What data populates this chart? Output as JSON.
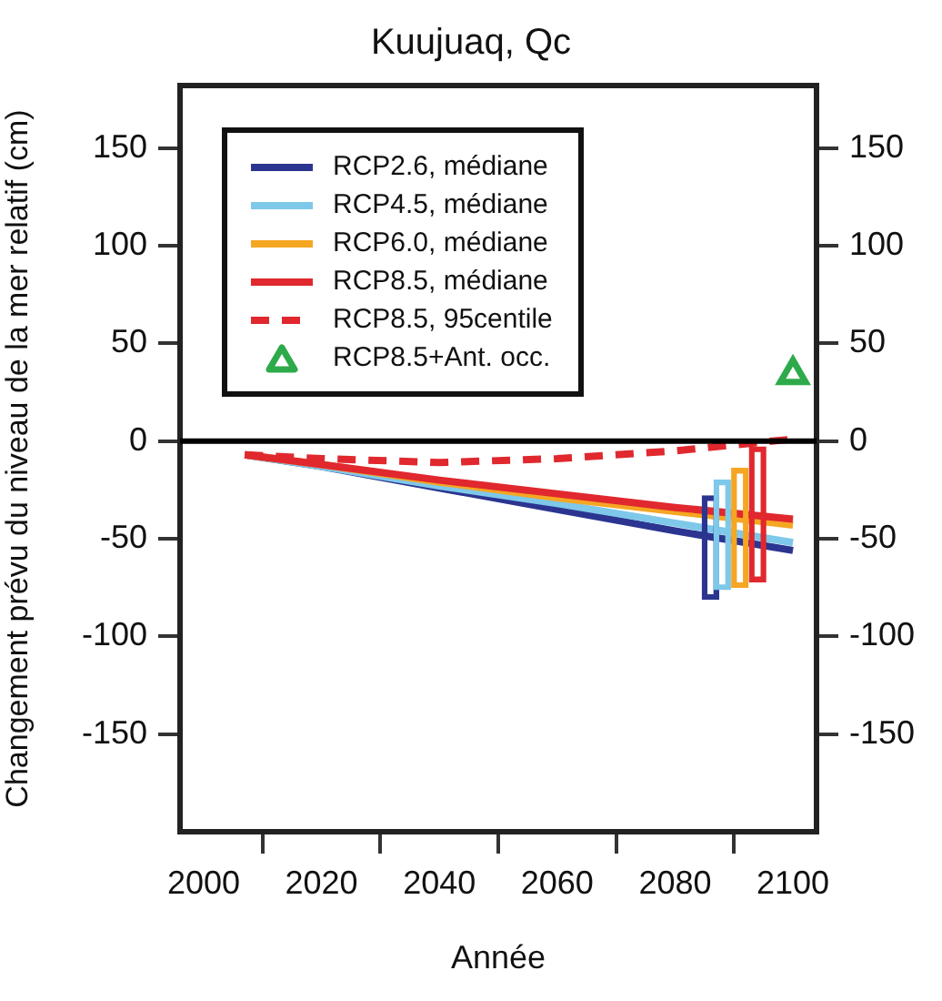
{
  "chart_data": {
    "type": "bar",
    "x": [
      2086,
      2088,
      2091,
      2094
    ],
    "base": [
      -81,
      -76,
      -75,
      -72
    ],
    "values": [
      53,
      56,
      61,
      69
    ],
    "colors": [
      "#2b3590",
      "#7ec8ea",
      "#f5a623",
      "#e0282e"
    ],
    "title": "Kuujuaq, Qc",
    "xlabel": "Année",
    "ylabel": "Changement prévu du niveau de la mer relatif (cm)",
    "xlim": [
      1996,
      2104
    ],
    "xticks": [
      2000,
      2020,
      2040,
      2060,
      2080,
      2100
    ],
    "ylim": [
      -200,
      182
    ],
    "yticks": [
      -150,
      -100,
      -50,
      0,
      50,
      100,
      150
    ],
    "y2lim": [
      -200,
      182
    ],
    "y2ticks": [
      -150,
      -100,
      -50,
      0,
      50,
      100,
      150
    ],
    "legend": "top left",
    "ref_lines": [
      {
        "axis": "y",
        "value": 0,
        "color": "#000000"
      }
    ],
    "series": [
      {
        "name": "RCP2.6, médiane",
        "type": "line",
        "color": "#2b3590",
        "line_style": "solid",
        "marker": "none",
        "x": [
          2007,
          2020,
          2040,
          2060,
          2080,
          2100
        ],
        "values": [
          -7,
          -13,
          -24,
          -35,
          -46,
          -56
        ]
      },
      {
        "name": "RCP4.5, médiane",
        "type": "line",
        "color": "#7ec8ea",
        "line_style": "solid",
        "marker": "none",
        "x": [
          2007,
          2020,
          2040,
          2060,
          2080,
          2100
        ],
        "values": [
          -7,
          -13,
          -23,
          -32,
          -42,
          -52
        ]
      },
      {
        "name": "RCP6.0, médiane",
        "type": "line",
        "color": "#f5a623",
        "line_style": "solid",
        "marker": "none",
        "x": [
          2007,
          2020,
          2040,
          2060,
          2080,
          2100
        ],
        "values": [
          -7,
          -12,
          -21,
          -29,
          -36,
          -43
        ]
      },
      {
        "name": "RCP8.5, médiane",
        "type": "line",
        "color": "#e0282e",
        "line_style": "solid",
        "marker": "none",
        "x": [
          2007,
          2020,
          2040,
          2060,
          2080,
          2100
        ],
        "values": [
          -7,
          -12,
          -20,
          -27,
          -34,
          -40
        ]
      },
      {
        "name": "RCP8.5, 95centile",
        "type": "line",
        "color": "#e0282e",
        "line_style": "dashed",
        "marker": "none",
        "x": [
          2007,
          2020,
          2040,
          2060,
          2080,
          2100
        ],
        "values": [
          -7,
          -9,
          -11,
          -9,
          -5,
          1
        ]
      },
      {
        "name": "RCP8.5+Ant. occ.",
        "type": "scatter",
        "color": "#2eaa4a",
        "marker": "triangle",
        "x": [
          2100
        ],
        "values": [
          34
        ]
      }
    ]
  }
}
